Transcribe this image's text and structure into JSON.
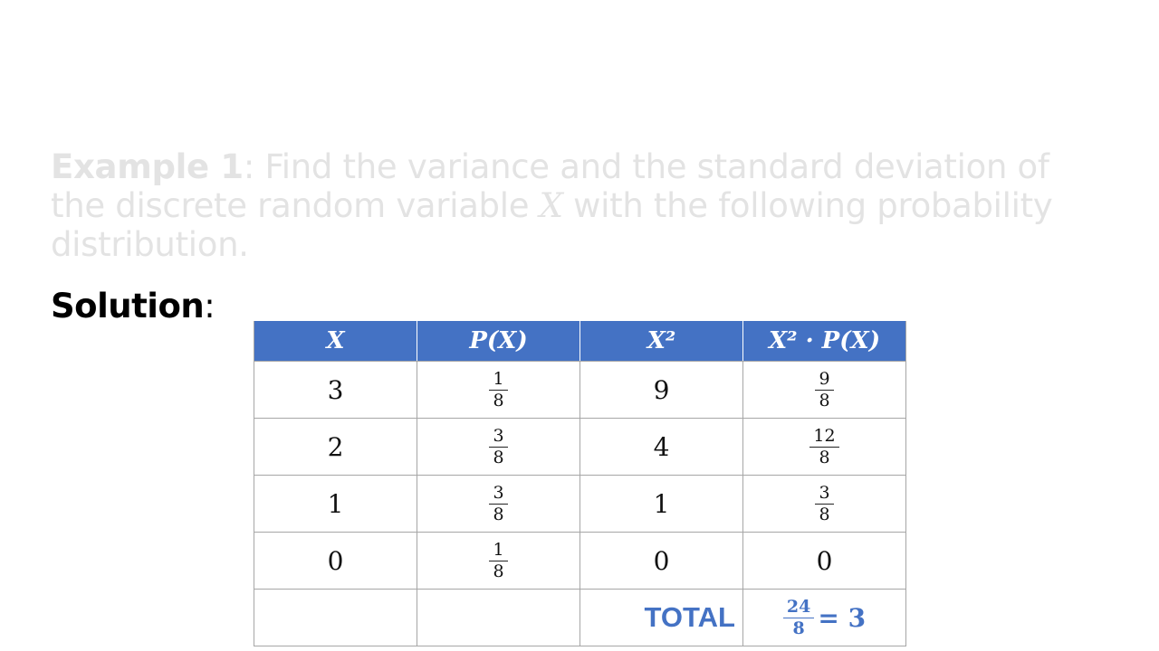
{
  "example": {
    "label": "Example 1",
    "text_a": ": Find the variance and the standard deviation of the discrete random variable ",
    "variable": "X",
    "text_b": " with the following probability distribution."
  },
  "solution": {
    "label": "Solution",
    "colon": ":"
  },
  "table": {
    "headers": [
      "X",
      "P(X)",
      "X²",
      "X² · P(X)"
    ],
    "rows": [
      {
        "x": "3",
        "p_num": "1",
        "p_den": "8",
        "x2": "9",
        "xp_num": "9",
        "xp_den": "8"
      },
      {
        "x": "2",
        "p_num": "3",
        "p_den": "8",
        "x2": "4",
        "xp_num": "12",
        "xp_den": "8"
      },
      {
        "x": "1",
        "p_num": "3",
        "p_den": "8",
        "x2": "1",
        "xp_num": "3",
        "xp_den": "8"
      },
      {
        "x": "0",
        "p_num": "1",
        "p_den": "8",
        "x2": "0",
        "xp_value": "0"
      }
    ],
    "total": {
      "label": "TOTAL",
      "num": "24",
      "den": "8",
      "result": "= 3"
    }
  },
  "colors": {
    "header_bg": "#4472c4",
    "accent": "#4472c4",
    "faded_text": "#e3e3e3"
  }
}
